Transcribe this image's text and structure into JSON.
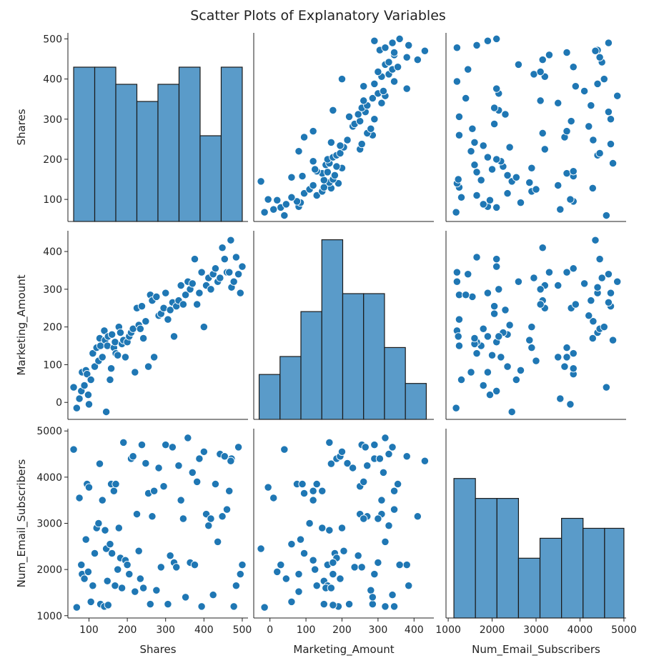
{
  "chart_data": {
    "type": "scatter",
    "title": "Scatter Plots of Explanatory Variables",
    "variables": [
      "Shares",
      "Marketing_Amount",
      "Num_Email_Subscribers"
    ],
    "axes": {
      "Shares": {
        "lim": [
          45,
          515
        ],
        "ticks": [
          100,
          200,
          300,
          400,
          500
        ]
      },
      "Marketing_Amount": {
        "lim": [
          -45,
          455
        ],
        "ticks": [
          0,
          100,
          200,
          300,
          400
        ]
      },
      "Num_Email_Subscribers": {
        "lim": [
          950,
          5050
        ],
        "ticks": [
          1000,
          2000,
          3000,
          4000,
          5000
        ]
      }
    },
    "histograms": [
      {
        "variable": "Shares",
        "count_lim": [
          0,
          11
        ],
        "bins": [
          60,
          115,
          170,
          225,
          280,
          335,
          390,
          445,
          500
        ],
        "counts": [
          9,
          9,
          8,
          7,
          8,
          9,
          5,
          9
        ]
      },
      {
        "variable": "Marketing_Amount",
        "count_lim": [
          0,
          21
        ],
        "bins": [
          -30,
          28,
          86,
          144,
          202,
          260,
          318,
          376,
          434
        ],
        "counts": [
          5,
          7,
          12,
          20,
          14,
          14,
          8,
          4
        ]
      },
      {
        "variable": "Num_Email_Subscribers",
        "count_lim": [
          0,
          19
        ],
        "bins": [
          1130,
          1620,
          2110,
          2600,
          3090,
          3580,
          4070,
          4560,
          5000
        ],
        "counts": [
          14,
          12,
          12,
          6,
          8,
          10,
          9,
          9
        ]
      }
    ],
    "data": {
      "Shares": [
        60,
        68,
        75,
        80,
        82,
        88,
        92,
        95,
        98,
        100,
        105,
        110,
        115,
        120,
        125,
        128,
        130,
        135,
        140,
        142,
        145,
        148,
        150,
        155,
        158,
        160,
        165,
        168,
        170,
        175,
        178,
        182,
        186,
        190,
        195,
        200,
        205,
        210,
        215,
        220,
        225,
        230,
        234,
        238,
        242,
        248,
        255,
        260,
        265,
        270,
        276,
        282,
        288,
        295,
        300,
        306,
        312,
        318,
        322,
        328,
        334,
        340,
        346,
        352,
        358,
        364,
        370,
        376,
        382,
        388,
        394,
        400,
        406,
        412,
        418,
        424,
        430,
        436,
        442,
        448,
        454,
        460,
        466,
        472,
        478,
        484,
        490,
        495,
        500,
        470
      ],
      "Marketing_Amount": [
        40,
        -15,
        10,
        30,
        80,
        45,
        85,
        75,
        20,
        -5,
        60,
        130,
        95,
        145,
        110,
        170,
        150,
        120,
        190,
        165,
        -25,
        150,
        175,
        60,
        90,
        180,
        145,
        160,
        130,
        125,
        200,
        185,
        155,
        165,
        120,
        160,
        175,
        185,
        195,
        80,
        250,
        205,
        195,
        255,
        170,
        215,
        95,
        285,
        270,
        120,
        280,
        230,
        235,
        250,
        290,
        220,
        245,
        265,
        175,
        255,
        270,
        310,
        260,
        285,
        320,
        300,
        315,
        380,
        260,
        290,
        345,
        200,
        310,
        330,
        300,
        340,
        355,
        320,
        330,
        410,
        380,
        345,
        345,
        305,
        320,
        385,
        340,
        290,
        360,
        430
      ],
      "Num_Email_Subscribers": [
        4600,
        1180,
        3550,
        2100,
        1900,
        1800,
        2650,
        3850,
        1950,
        3780,
        1300,
        1650,
        2350,
        2900,
        3000,
        4290,
        1250,
        3500,
        1200,
        2850,
        2450,
        1750,
        1230,
        2550,
        3850,
        2350,
        3700,
        1650,
        3850,
        2000,
        2900,
        2250,
        1600,
        4750,
        2200,
        2100,
        1900,
        4400,
        4450,
        1520,
        3200,
        2400,
        1800,
        4700,
        1600,
        4300,
        3650,
        1250,
        3150,
        3700,
        1550,
        4200,
        2050,
        3800,
        4700,
        1250,
        2300,
        4650,
        2150,
        2050,
        4250,
        3500,
        3100,
        1400,
        4850,
        2150,
        4100,
        2100,
        3900,
        4400,
        1200,
        4550,
        3200,
        2950,
        3100,
        1450,
        3850,
        2600,
        4500,
        3150,
        4450,
        3300,
        3700,
        4400,
        1200,
        1650,
        4650,
        1900,
        2100,
        4350
      ]
    },
    "xlabels": [
      "Shares",
      "Marketing_Amount",
      "Num_Email_Subscribers"
    ],
    "ylabels": [
      "Shares",
      "Marketing_Amount",
      "Num_Email_Subscribers"
    ]
  }
}
